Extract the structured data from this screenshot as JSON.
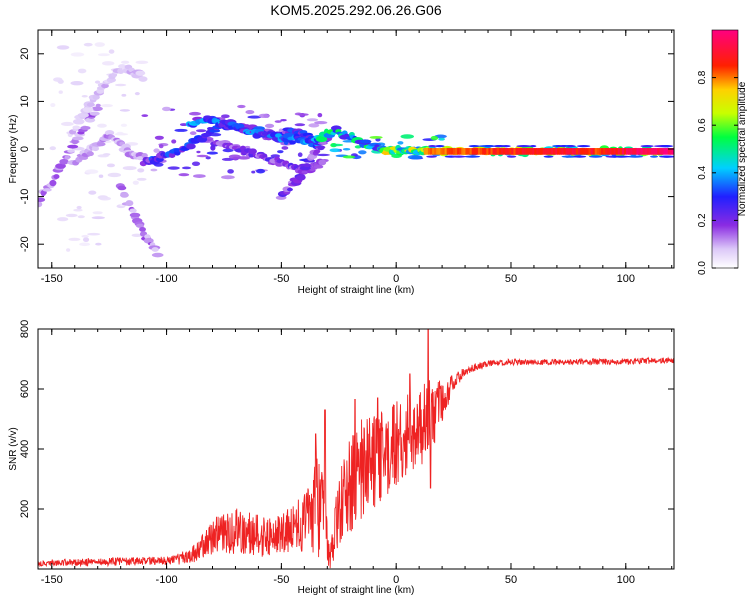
{
  "title": "KOM5.2025.292.06.26.G06",
  "colors": {
    "snr_line": "#ee2222",
    "frame": "#000000",
    "spectro_purple": "#8a2be2",
    "spectro_light": "#cbb0f3"
  },
  "chart_data": [
    {
      "type": "heatmap",
      "name": "spectrogram",
      "xlabel": "Height of straight line (km)",
      "ylabel": "Frequency (Hz)",
      "xlim": [
        -156,
        121
      ],
      "ylim": [
        -25,
        25
      ],
      "xticks": [
        -150,
        -100,
        -50,
        0,
        50,
        100
      ],
      "yticks": [
        -20,
        -10,
        0,
        10,
        20
      ],
      "colorbar": {
        "label": "Normalized spectral amplitude",
        "range": [
          0,
          1
        ],
        "ticks": [
          "0.0",
          "0.2",
          "0.4",
          "0.6",
          "0.8"
        ],
        "tick_values": [
          0,
          0.2,
          0.4,
          0.6,
          0.8
        ]
      },
      "ridges": [
        {
          "x": [
            -156,
            -150,
            -145,
            -140,
            -135,
            -130
          ],
          "y": [
            -11,
            -7,
            -3,
            1,
            5,
            9
          ],
          "amp": 0.12
        },
        {
          "x": [
            -142,
            -138,
            -134,
            -130,
            -126,
            -122,
            -118,
            -114,
            -110
          ],
          "y": [
            3,
            6,
            9,
            12,
            14,
            16,
            17,
            16,
            15
          ],
          "amp": 0.08
        },
        {
          "x": [
            -140,
            -135,
            -130,
            -125,
            -120,
            -115,
            -110
          ],
          "y": [
            -3,
            -1,
            1,
            3,
            1,
            -1,
            -2
          ],
          "amp": 0.1
        },
        {
          "x": [
            -120,
            -116,
            -112,
            -108,
            -104
          ],
          "y": [
            -8,
            -12,
            -16,
            -19,
            -22
          ],
          "amp": 0.12
        },
        {
          "x": [
            -110,
            -104,
            -98,
            -92,
            -86,
            -80,
            -74,
            -68,
            -62,
            -56,
            -50,
            -45,
            -40,
            -36,
            -32
          ],
          "y": [
            -3,
            -2,
            -1,
            0,
            2,
            4,
            5,
            5,
            4,
            3,
            3,
            4,
            3,
            2,
            2
          ],
          "amp": 0.25
        },
        {
          "x": [
            -90,
            -84,
            -78,
            -72,
            -66,
            -60,
            -54,
            -48,
            -42,
            -36,
            -30
          ],
          "y": [
            5,
            6,
            6,
            5,
            4,
            3,
            3,
            2,
            2,
            1,
            2
          ],
          "amp": 0.3
        },
        {
          "x": [
            -80,
            -74,
            -68,
            -62,
            -56,
            -50,
            -44,
            -38,
            -32
          ],
          "y": [
            1,
            1,
            0,
            -1,
            -2,
            -3,
            -4,
            -4,
            -3
          ],
          "amp": 0.18
        },
        {
          "x": [
            -50,
            -46,
            -42,
            -38,
            -34,
            -30
          ],
          "y": [
            -10,
            -8,
            -6,
            -3,
            0,
            2
          ],
          "amp": 0.18
        },
        {
          "x": [
            -35,
            -30,
            -26,
            -22,
            -18,
            -14,
            -10,
            -6,
            -2,
            2,
            6,
            10,
            14
          ],
          "y": [
            2,
            3,
            4,
            3,
            2,
            1,
            0.5,
            0,
            -0.2,
            -0.3,
            -0.4,
            -0.4,
            -0.4
          ],
          "amp": 0.4
        },
        {
          "x": [
            -5,
            0,
            5,
            10,
            15,
            20,
            25,
            30,
            40,
            50,
            60,
            70,
            80,
            90,
            100,
            110,
            121
          ],
          "y": [
            -0.3,
            -0.4,
            -0.4,
            -0.5,
            -0.5,
            -0.5,
            -0.5,
            -0.5,
            -0.5,
            -0.5,
            -0.5,
            -0.5,
            -0.5,
            -0.5,
            -0.5,
            -0.5,
            -0.5
          ],
          "amp": 0.55
        }
      ],
      "carrier": {
        "x_start": 12,
        "x_end": 121,
        "freq": -0.5,
        "amp_start": 0.8,
        "amp_end": 0.97
      },
      "scatter_regions": [
        {
          "x": [
            -150,
            -110
          ],
          "y": [
            -22,
            22
          ],
          "count": 70,
          "amp": 0.05
        },
        {
          "x": [
            -110,
            -30
          ],
          "y": [
            -6,
            9
          ],
          "count": 90,
          "amp": 0.2
        },
        {
          "x": [
            -30,
            20
          ],
          "y": [
            -2,
            3
          ],
          "count": 30,
          "amp": 0.4
        }
      ]
    },
    {
      "type": "line",
      "name": "snr",
      "xlabel": "Height of straight line (km)",
      "ylabel": "SNR (v/v)",
      "xlim": [
        -156,
        121
      ],
      "ylim": [
        0,
        800
      ],
      "xticks": [
        -150,
        -100,
        -50,
        0,
        50,
        100
      ],
      "yticks": [
        200,
        400,
        600,
        800
      ],
      "envelope": {
        "x": [
          -156,
          -140,
          -120,
          -100,
          -90,
          -85,
          -80,
          -70,
          -60,
          -50,
          -40,
          -35,
          -31,
          -29,
          -25,
          -20,
          -15,
          -10,
          -5,
          0,
          5,
          10,
          15,
          20,
          25,
          30,
          35,
          40,
          45,
          50,
          60,
          80,
          100,
          121
        ],
        "mean": [
          20,
          22,
          25,
          28,
          40,
          70,
          110,
          130,
          110,
          110,
          150,
          220,
          160,
          30,
          200,
          280,
          330,
          360,
          380,
          420,
          450,
          470,
          500,
          560,
          620,
          660,
          675,
          685,
          688,
          690,
          690,
          690,
          692,
          695
        ],
        "noise": [
          10,
          12,
          14,
          14,
          25,
          40,
          60,
          80,
          70,
          70,
          100,
          180,
          140,
          40,
          120,
          160,
          170,
          170,
          150,
          150,
          140,
          140,
          140,
          70,
          30,
          16,
          12,
          10,
          10,
          10,
          10,
          10,
          10,
          10
        ]
      },
      "spikes": [
        {
          "x": -31,
          "y": 530
        },
        {
          "x": -35,
          "y": 450
        },
        {
          "x": -18,
          "y": 565
        },
        {
          "x": -8,
          "y": 570
        },
        {
          "x": 6,
          "y": 650
        },
        {
          "x": 14,
          "y": 800
        },
        {
          "x": 15,
          "y": 270
        }
      ],
      "samples": 1600
    }
  ]
}
